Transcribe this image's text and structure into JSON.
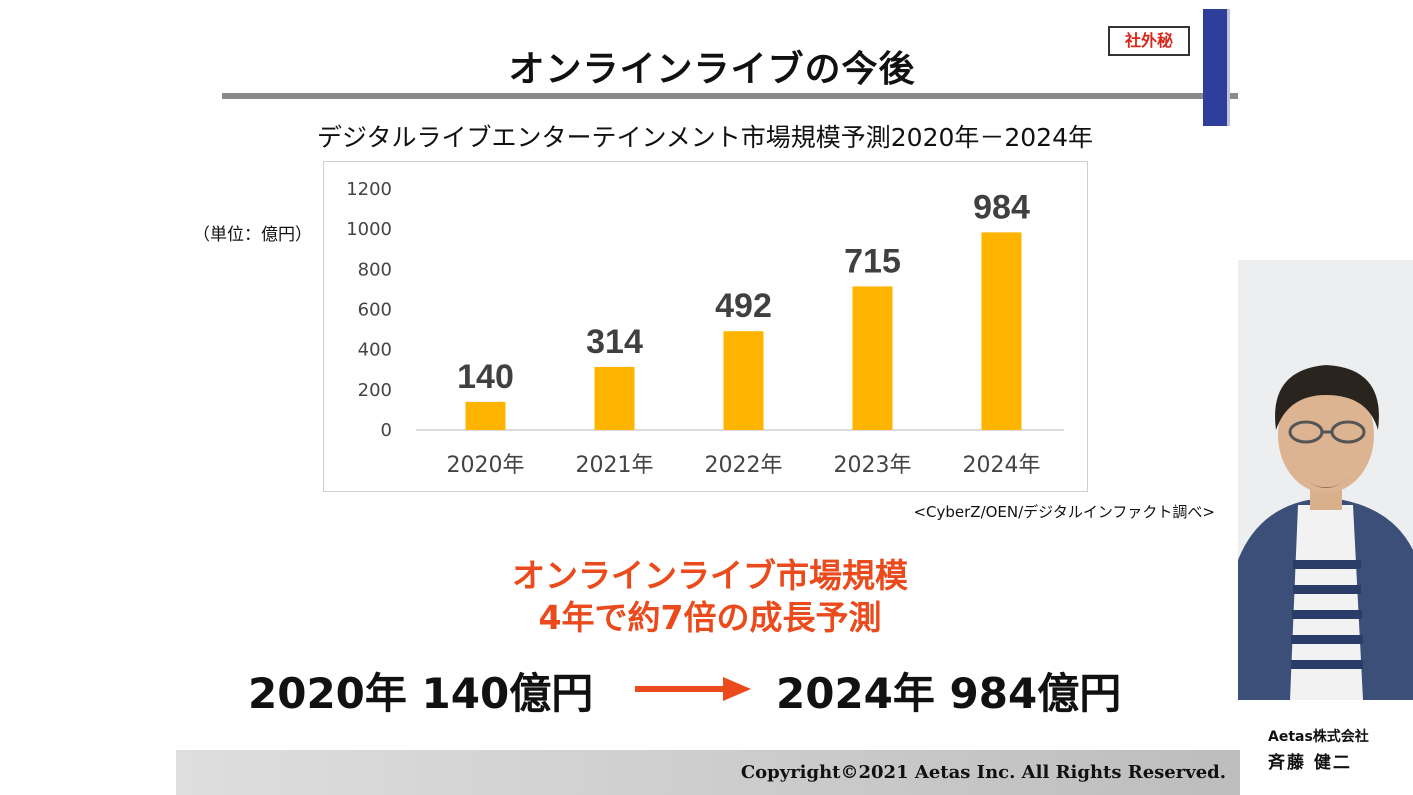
{
  "slide": {
    "title": "オンラインライブの今後",
    "confidential_badge": "社外秘",
    "chart_title": "デジタルライブエンターテインメント市場規模予測2020年－2024年",
    "unit_label": "（単位：億円）",
    "source": "<CyberZ/OEN/デジタルインファクト調べ>",
    "headline_line1": "オンラインライブ市場規模",
    "headline_line2": "4年で約7倍の成長予測",
    "compare_left": "2020年  140億円",
    "compare_right": "2024年  984億円",
    "copyright": "Copyright©2021 Aetas Inc.  All Rights Reserved."
  },
  "presenter": {
    "company": "Aetas株式会社",
    "name": "斉藤 健二"
  },
  "colors": {
    "bar": "#ffb400",
    "headline": "#ea4a1c",
    "accent_bar": "#2d3f9a"
  },
  "chart_data": {
    "type": "bar",
    "categories": [
      "2020年",
      "2021年",
      "2022年",
      "2023年",
      "2024年"
    ],
    "values": [
      140,
      314,
      492,
      715,
      984
    ],
    "y_ticks": [
      0,
      200,
      400,
      600,
      800,
      1000,
      1200
    ],
    "ylim": [
      0,
      1200
    ],
    "grid": false,
    "legend": "none"
  }
}
